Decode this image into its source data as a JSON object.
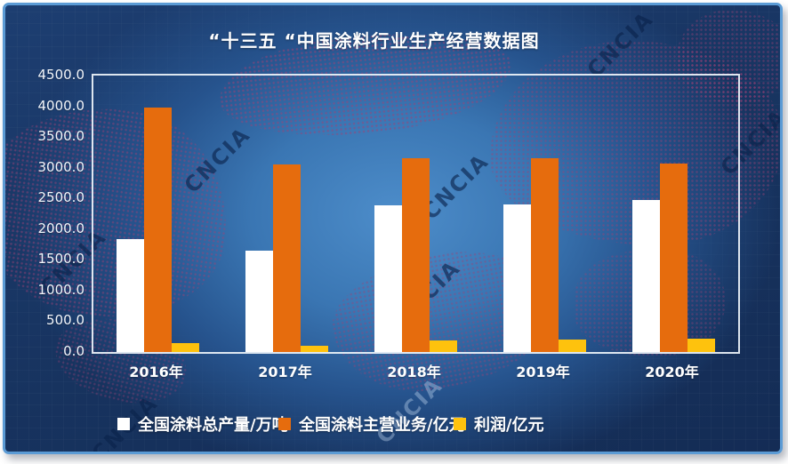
{
  "panel": {
    "border_color": "#5b9bd5",
    "background_dark": "#16305c",
    "background_glow": "#4d8dca"
  },
  "watermark": {
    "text": "CNCIA"
  },
  "chart_data": {
    "type": "bar",
    "title": "“十三五 “中国涂料行业生产经营数据图",
    "categories": [
      "2016年",
      "2017年",
      "2018年",
      "2019年",
      "2020年"
    ],
    "series": [
      {
        "name": "全国涂料总产量/万吨",
        "color": "#ffffff",
        "values": [
          1840,
          1650,
          2390,
          2400,
          2470
        ]
      },
      {
        "name": "全国涂料主营业务/亿元",
        "color": "#e66c0d",
        "values": [
          3980,
          3050,
          3150,
          3150,
          3070
        ]
      },
      {
        "name": "利润/亿元",
        "color": "#fec20d",
        "values": [
          145,
          105,
          190,
          210,
          220
        ]
      }
    ],
    "ylim": [
      0,
      4500
    ],
    "ytick_step": 500,
    "ytick_labels": [
      "0.0",
      "500.0",
      "1000.0",
      "1500.0",
      "2000.0",
      "2500.0",
      "3000.0",
      "3500.0",
      "4000.0",
      "4500.0"
    ],
    "grid": false,
    "legend_position": "bottom",
    "xlabel": "",
    "ylabel": ""
  }
}
